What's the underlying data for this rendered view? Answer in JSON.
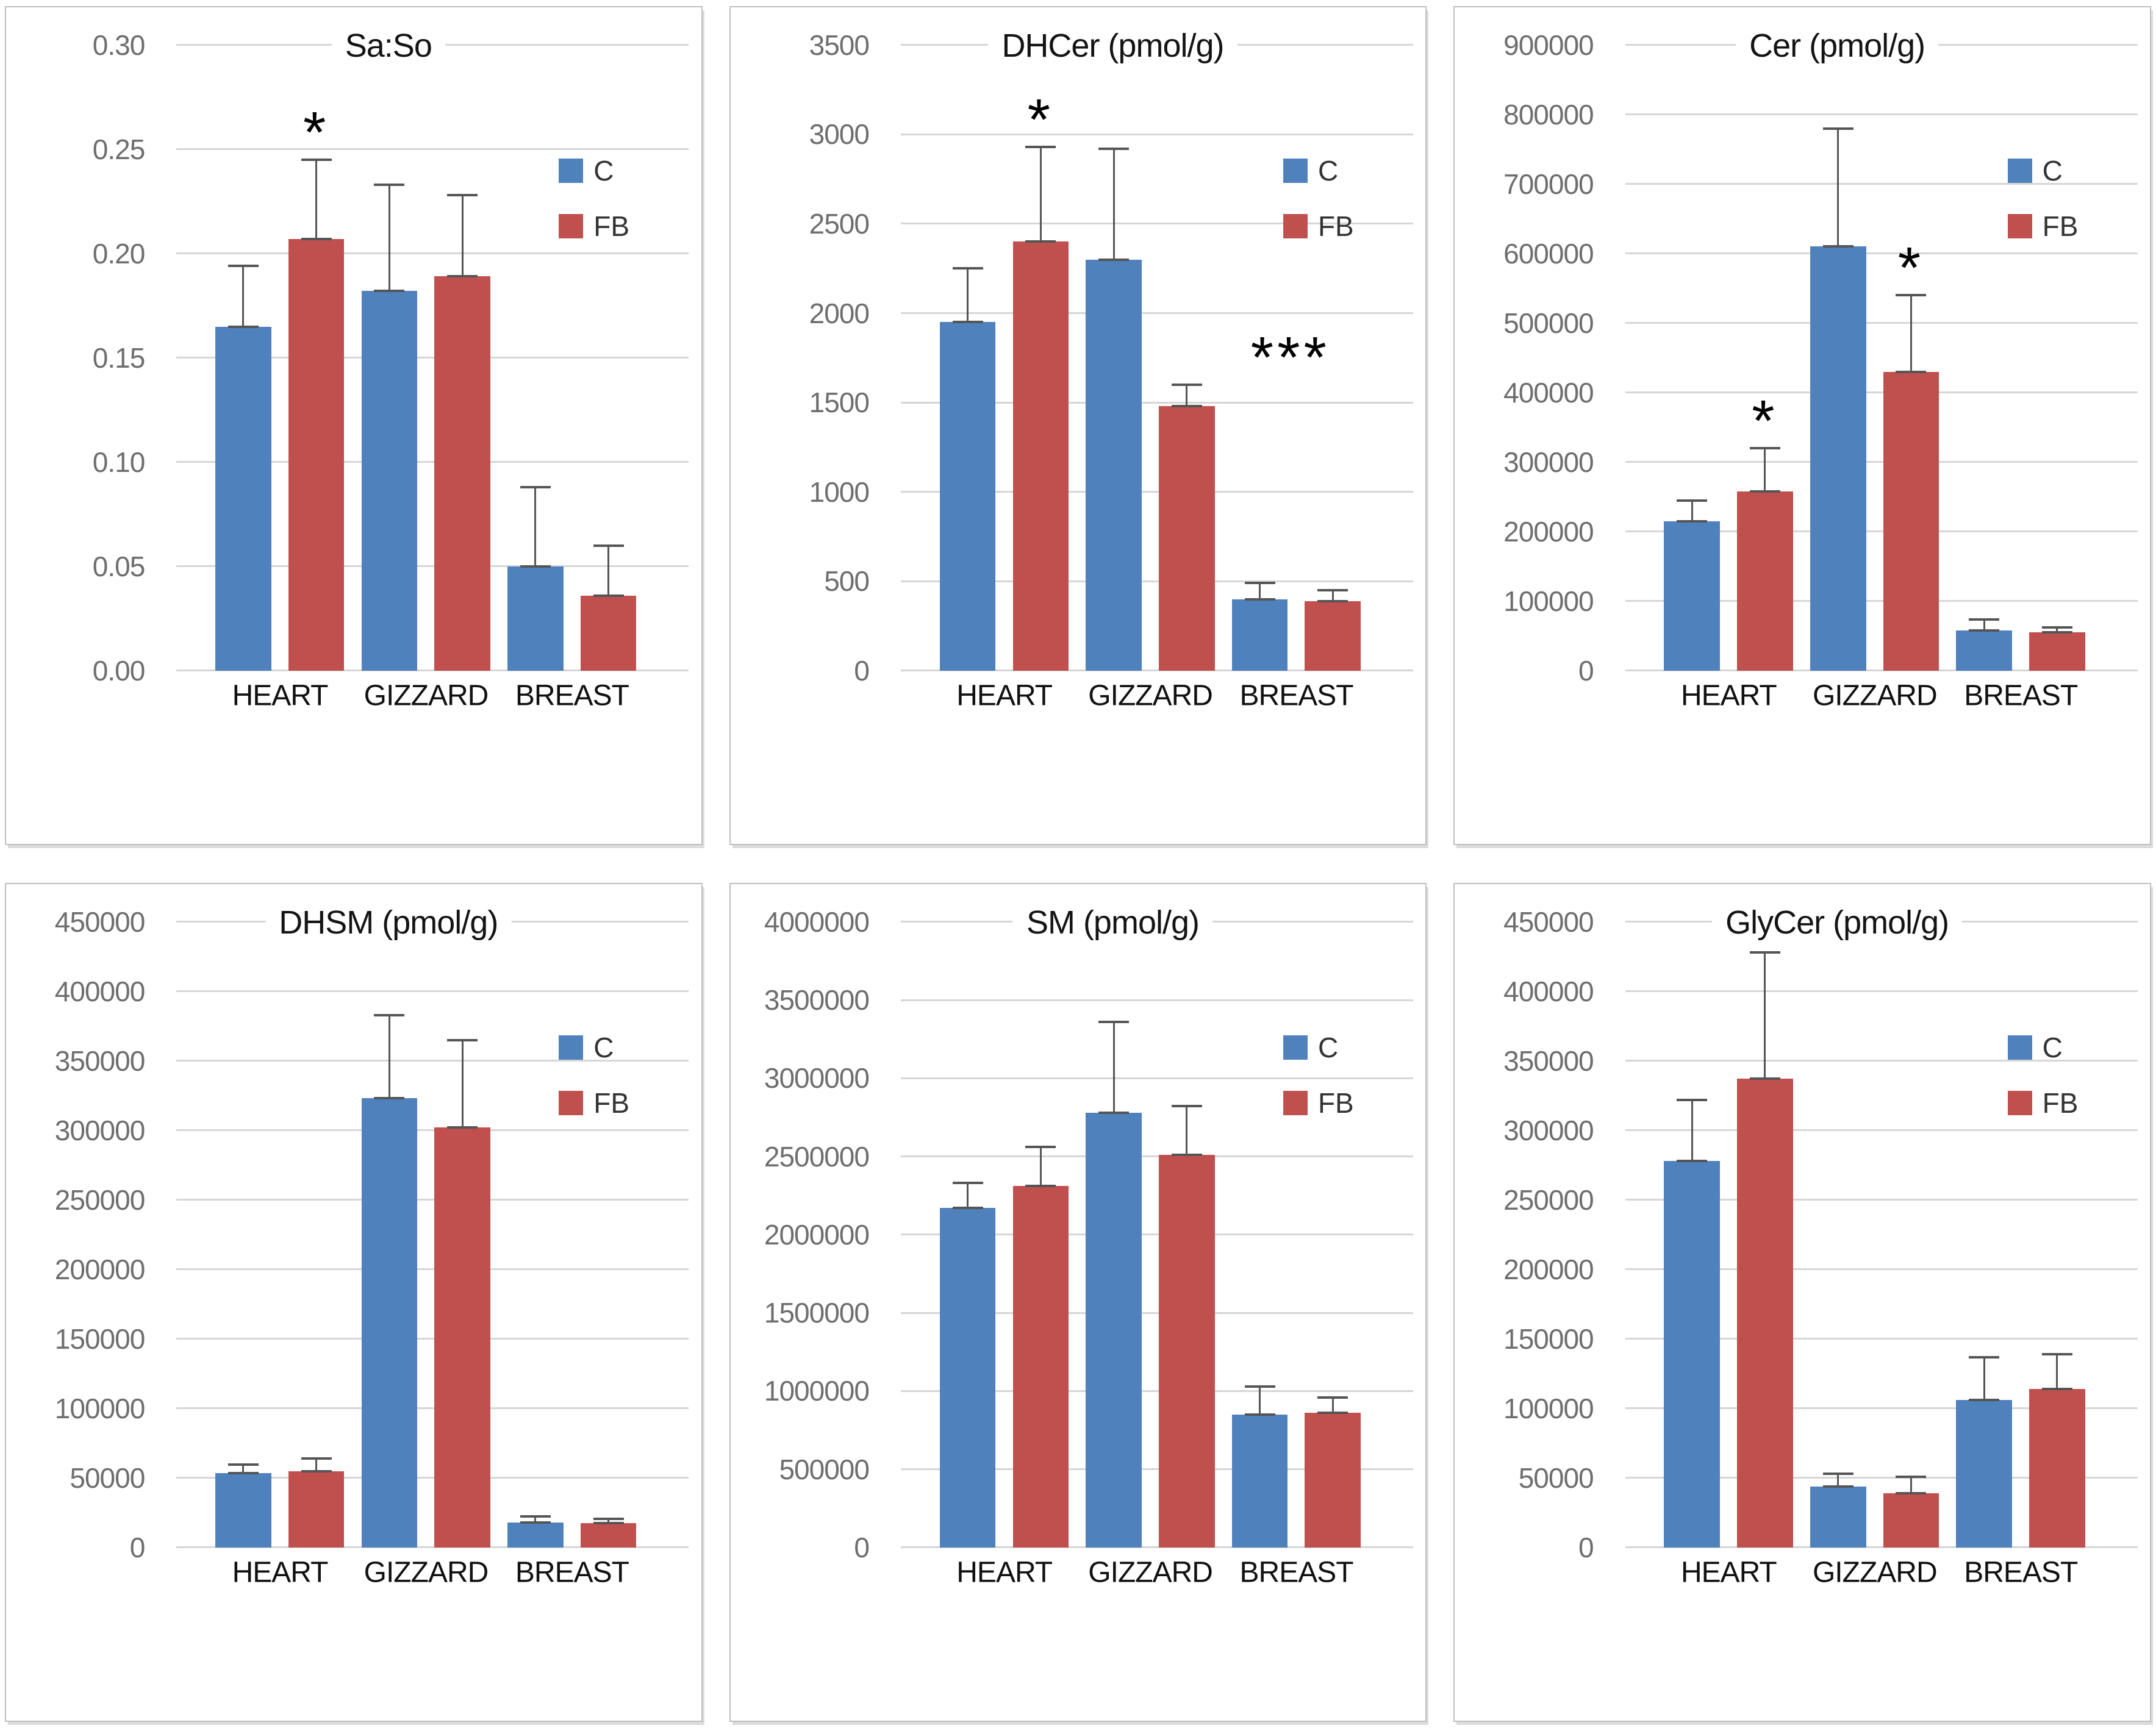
{
  "figure": {
    "description": "Six bar charts of sphingolipid measures in chicken tissues, C vs FB"
  },
  "palette": {
    "c_color": "#4F81BD",
    "fb_color": "#C0504D",
    "error_bar_color": "#555555",
    "gridline_color": "#D6D6D6",
    "tick_label_color": "#6E6E6E",
    "axis_label_color": "#111111",
    "panel_border_color": "#BFBFBF"
  },
  "legend": {
    "position": "right-inside",
    "items": [
      {
        "label": "C",
        "color": "#4F81BD"
      },
      {
        "label": "FB",
        "color": "#C0504D"
      }
    ]
  },
  "chart_data": [
    {
      "type": "bar",
      "title": "Sa:So",
      "categories": [
        "HEART",
        "GIZZARD",
        "BREAST"
      ],
      "ylim": [
        0,
        0.3
      ],
      "ytick_step": 0.05,
      "tick_labels": [
        "0.30",
        "0.25",
        "0.20",
        "0.15",
        "0.10",
        "0.05",
        "0.00"
      ],
      "grid": "on",
      "legend_position": "right-inside",
      "series": [
        {
          "name": "C",
          "values": [
            0.165,
            0.182,
            0.05
          ],
          "error_top": [
            0.194,
            0.233,
            0.088
          ]
        },
        {
          "name": "FB",
          "values": [
            0.207,
            0.189,
            0.036
          ],
          "error_top": [
            0.245,
            0.228,
            0.06
          ]
        }
      ],
      "annotations": [
        {
          "category": "HEART",
          "series": "FB",
          "symbol": "*",
          "dx": 0
        }
      ]
    },
    {
      "type": "bar",
      "title": "DHCer (pmol/g)",
      "categories": [
        "HEART",
        "GIZZARD",
        "BREAST"
      ],
      "ylim": [
        0,
        3500
      ],
      "ytick_step": 500,
      "tick_labels": [
        "3500",
        "3000",
        "2500",
        "2000",
        "1500",
        "1000",
        "500",
        "0"
      ],
      "grid": "on",
      "legend_position": "right-inside",
      "series": [
        {
          "name": "C",
          "values": [
            1950,
            2300,
            400
          ],
          "error_top": [
            2250,
            2920,
            490
          ]
        },
        {
          "name": "FB",
          "values": [
            2400,
            1480,
            390
          ],
          "error_top": [
            2930,
            1600,
            450
          ]
        }
      ],
      "annotations": [
        {
          "category": "HEART",
          "series": "FB",
          "symbol": "*",
          "dx": 0
        },
        {
          "category": "GIZZARD",
          "series": "FB",
          "symbol": "***",
          "dx": 170
        }
      ]
    },
    {
      "type": "bar",
      "title": "Cer (pmol/g)",
      "categories": [
        "HEART",
        "GIZZARD",
        "BREAST"
      ],
      "ylim": [
        0,
        900000
      ],
      "ytick_step": 100000,
      "tick_labels": [
        "900000",
        "800000",
        "700000",
        "600000",
        "500000",
        "400000",
        "300000",
        "200000",
        "100000",
        "0"
      ],
      "grid": "on",
      "legend_position": "right-inside",
      "series": [
        {
          "name": "C",
          "values": [
            215000,
            610000,
            58000
          ],
          "error_top": [
            245000,
            780000,
            74000
          ]
        },
        {
          "name": "FB",
          "values": [
            258000,
            430000,
            55000
          ],
          "error_top": [
            320000,
            540000,
            62000
          ]
        }
      ],
      "annotations": [
        {
          "category": "HEART",
          "series": "FB",
          "symbol": "*",
          "dx": 0
        },
        {
          "category": "GIZZARD",
          "series": "FB",
          "symbol": "*",
          "dx": 0
        }
      ]
    },
    {
      "type": "bar",
      "title": "DHSM (pmol/g)",
      "categories": [
        "HEART",
        "GIZZARD",
        "BREAST"
      ],
      "ylim": [
        0,
        450000
      ],
      "ytick_step": 50000,
      "tick_labels": [
        "450000",
        "400000",
        "350000",
        "300000",
        "250000",
        "200000",
        "150000",
        "100000",
        "50000",
        "0"
      ],
      "grid": "on",
      "legend_position": "right-inside",
      "series": [
        {
          "name": "C",
          "values": [
            53500,
            323000,
            18000
          ],
          "error_top": [
            59500,
            383000,
            22500
          ]
        },
        {
          "name": "FB",
          "values": [
            55000,
            302000,
            17500
          ],
          "error_top": [
            64000,
            365000,
            20500
          ]
        }
      ],
      "annotations": []
    },
    {
      "type": "bar",
      "title": "SM (pmol/g)",
      "categories": [
        "HEART",
        "GIZZARD",
        "BREAST"
      ],
      "ylim": [
        0,
        4000000
      ],
      "ytick_step": 500000,
      "tick_labels": [
        "4000000",
        "3500000",
        "3000000",
        "2500000",
        "2000000",
        "1500000",
        "1000000",
        "500000",
        "0"
      ],
      "grid": "on",
      "legend_position": "right-inside",
      "series": [
        {
          "name": "C",
          "values": [
            2170000,
            2780000,
            850000
          ],
          "error_top": [
            2330000,
            3360000,
            1030000
          ]
        },
        {
          "name": "FB",
          "values": [
            2310000,
            2510000,
            860000
          ],
          "error_top": [
            2560000,
            2820000,
            960000
          ]
        }
      ],
      "annotations": []
    },
    {
      "type": "bar",
      "title": "GlyCer (pmol/g)",
      "categories": [
        "HEART",
        "GIZZARD",
        "BREAST"
      ],
      "ylim": [
        0,
        450000
      ],
      "ytick_step": 50000,
      "tick_labels": [
        "450000",
        "400000",
        "350000",
        "300000",
        "250000",
        "200000",
        "150000",
        "100000",
        "50000",
        "0"
      ],
      "grid": "on",
      "legend_position": "right-inside",
      "series": [
        {
          "name": "C",
          "values": [
            278000,
            44000,
            106000
          ],
          "error_top": [
            322000,
            53000,
            137000
          ]
        },
        {
          "name": "FB",
          "values": [
            337000,
            39000,
            114000
          ],
          "error_top": [
            428000,
            51000,
            139000
          ]
        }
      ],
      "annotations": []
    }
  ]
}
